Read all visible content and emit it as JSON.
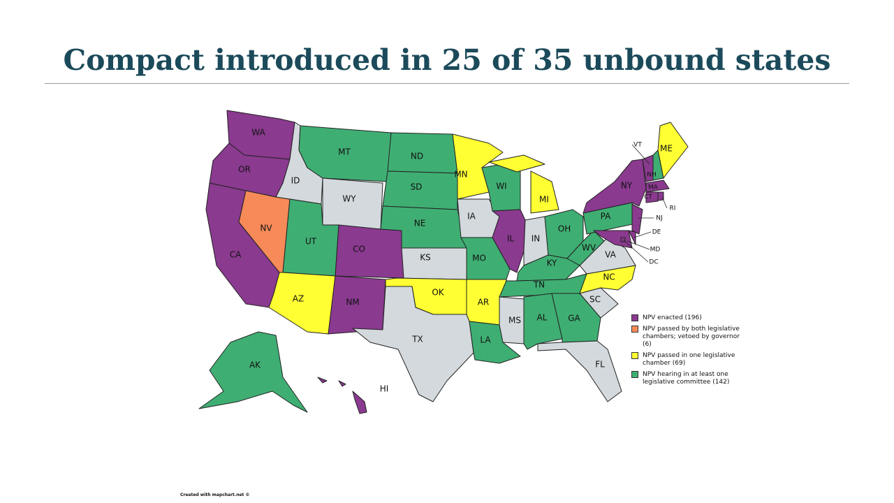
{
  "title": "Compact introduced in 25 of 35 unbound states",
  "legend": [
    {
      "key": "enacted",
      "label": "NPV enacted (196)",
      "color": "#8a3a8f"
    },
    {
      "key": "vetoed",
      "label": "NPV passed by both legislative chambers; vetoed by governor (6)",
      "color": "#f68a58"
    },
    {
      "key": "one",
      "label": "NPV passed in one legislative chamber (69)",
      "color": "#ffff33"
    },
    {
      "key": "hearing",
      "label": "NPV hearing in at least one legislative committee (142)",
      "color": "#3fae73"
    }
  ],
  "none_color": "#d3d9dc",
  "states": [
    {
      "abbr": "WA",
      "category": "enacted"
    },
    {
      "abbr": "OR",
      "category": "enacted"
    },
    {
      "abbr": "CA",
      "category": "enacted"
    },
    {
      "abbr": "NV",
      "category": "vetoed"
    },
    {
      "abbr": "ID",
      "category": "none"
    },
    {
      "abbr": "MT",
      "category": "hearing"
    },
    {
      "abbr": "WY",
      "category": "none"
    },
    {
      "abbr": "UT",
      "category": "hearing"
    },
    {
      "abbr": "AZ",
      "category": "one"
    },
    {
      "abbr": "CO",
      "category": "enacted"
    },
    {
      "abbr": "NM",
      "category": "enacted"
    },
    {
      "abbr": "ND",
      "category": "hearing"
    },
    {
      "abbr": "SD",
      "category": "hearing"
    },
    {
      "abbr": "NE",
      "category": "hearing"
    },
    {
      "abbr": "KS",
      "category": "none"
    },
    {
      "abbr": "OK",
      "category": "one"
    },
    {
      "abbr": "TX",
      "category": "none"
    },
    {
      "abbr": "MN",
      "category": "one"
    },
    {
      "abbr": "IA",
      "category": "none"
    },
    {
      "abbr": "MO",
      "category": "hearing"
    },
    {
      "abbr": "AR",
      "category": "one"
    },
    {
      "abbr": "LA",
      "category": "hearing"
    },
    {
      "abbr": "WI",
      "category": "hearing"
    },
    {
      "abbr": "IL",
      "category": "enacted"
    },
    {
      "abbr": "MI",
      "category": "one"
    },
    {
      "abbr": "IN",
      "category": "none"
    },
    {
      "abbr": "OH",
      "category": "hearing"
    },
    {
      "abbr": "KY",
      "category": "hearing"
    },
    {
      "abbr": "TN",
      "category": "hearing"
    },
    {
      "abbr": "MS",
      "category": "none"
    },
    {
      "abbr": "AL",
      "category": "hearing"
    },
    {
      "abbr": "GA",
      "category": "hearing"
    },
    {
      "abbr": "FL",
      "category": "none"
    },
    {
      "abbr": "SC",
      "category": "none"
    },
    {
      "abbr": "NC",
      "category": "one"
    },
    {
      "abbr": "VA",
      "category": "none"
    },
    {
      "abbr": "WV",
      "category": "hearing"
    },
    {
      "abbr": "PA",
      "category": "hearing"
    },
    {
      "abbr": "NY",
      "category": "enacted"
    },
    {
      "abbr": "NJ",
      "category": "enacted"
    },
    {
      "abbr": "DE",
      "category": "enacted"
    },
    {
      "abbr": "MD",
      "category": "enacted"
    },
    {
      "abbr": "DC",
      "category": "enacted"
    },
    {
      "abbr": "VT",
      "category": "enacted"
    },
    {
      "abbr": "NH",
      "category": "hearing"
    },
    {
      "abbr": "ME",
      "category": "one"
    },
    {
      "abbr": "MA",
      "category": "enacted"
    },
    {
      "abbr": "CT",
      "category": "enacted"
    },
    {
      "abbr": "RI",
      "category": "enacted"
    },
    {
      "abbr": "AK",
      "category": "hearing"
    },
    {
      "abbr": "HI",
      "category": "enacted"
    }
  ],
  "footer": "Created with mapchart.net ©"
}
